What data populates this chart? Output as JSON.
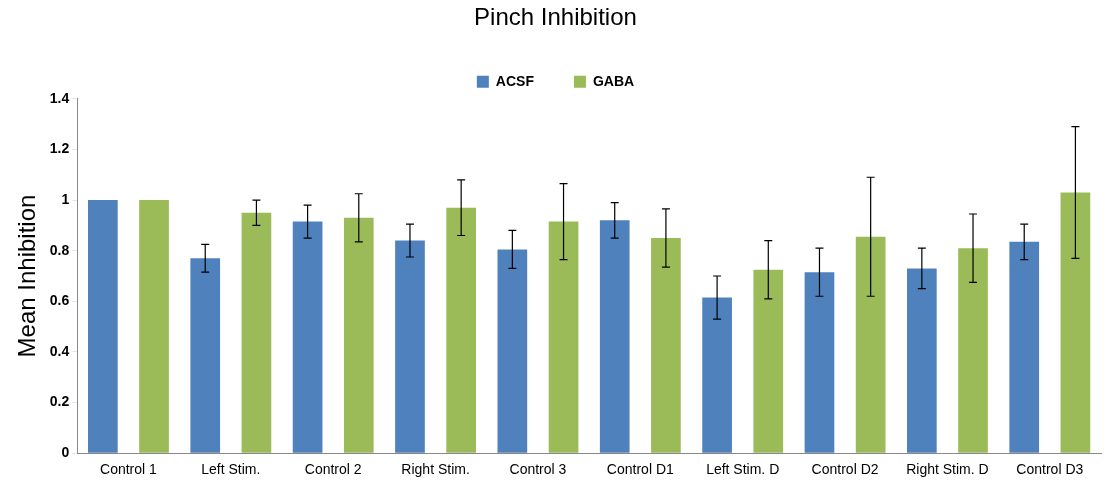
{
  "chart_data": {
    "type": "bar",
    "title": "Pinch Inhibition",
    "ylabel": "Mean Inhibition",
    "categories": [
      "Control 1",
      "Left Stim.",
      "Control 2",
      "Right Stim.",
      "Control 3",
      "Control D1",
      "Left Stim. D",
      "Control D2",
      "Right Stim. D",
      "Control D3"
    ],
    "series": [
      {
        "name": "ACSF",
        "color": "#4f81bd",
        "values": [
          1.0,
          0.77,
          0.915,
          0.84,
          0.805,
          0.92,
          0.615,
          0.715,
          0.73,
          0.835
        ],
        "errors": [
          null,
          0.055,
          0.065,
          0.065,
          0.075,
          0.07,
          0.085,
          0.095,
          0.08,
          0.07
        ]
      },
      {
        "name": "GABA",
        "color": "#9bbb59",
        "values": [
          1.0,
          0.95,
          0.93,
          0.97,
          0.915,
          0.85,
          0.725,
          0.855,
          0.81,
          1.03
        ],
        "errors": [
          null,
          0.05,
          0.095,
          0.11,
          0.15,
          0.115,
          0.115,
          0.235,
          0.135,
          0.26
        ]
      }
    ],
    "ylim": [
      0,
      1.4
    ],
    "yticks": [
      0,
      0.2,
      0.4,
      0.6,
      0.8,
      1,
      1.2,
      1.4
    ],
    "grid": false,
    "legend": "top"
  }
}
